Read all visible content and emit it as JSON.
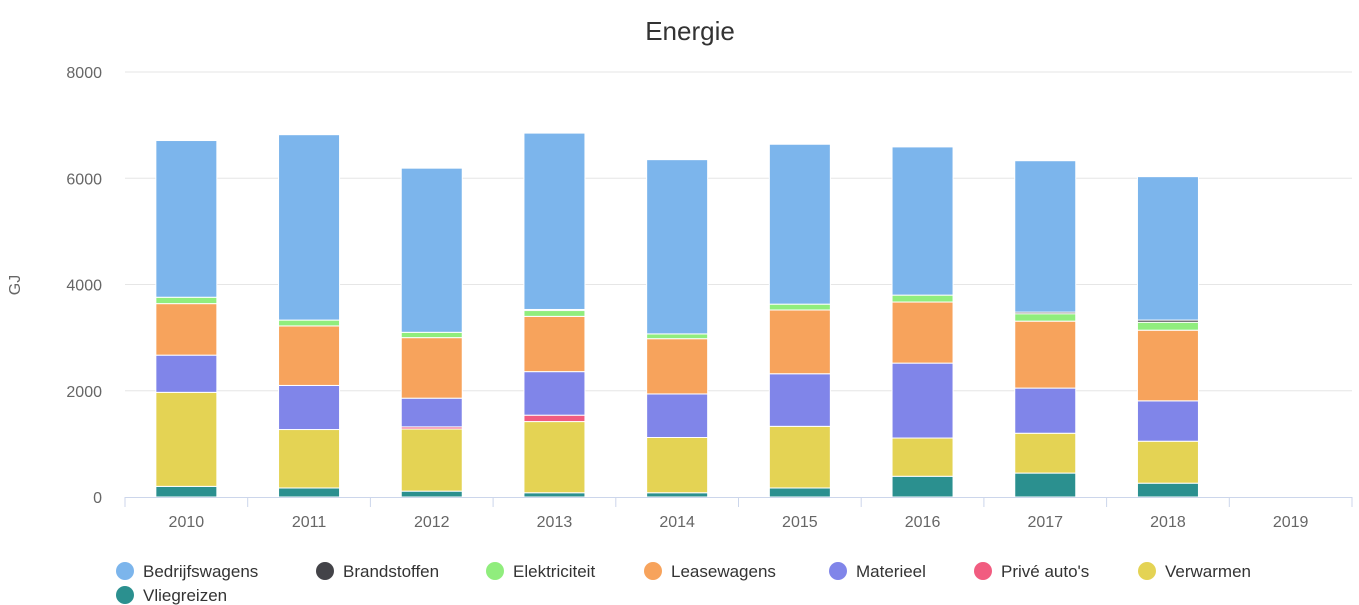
{
  "chart_data": {
    "type": "bar",
    "stacked": true,
    "title": "Energie",
    "xlabel": "",
    "ylabel": "GJ",
    "ylim": [
      0,
      8000
    ],
    "yticks": [
      "0",
      "2000",
      "4000",
      "6000",
      "8000"
    ],
    "grid": true,
    "legend": "bottom",
    "categories": [
      "2010",
      "2011",
      "2012",
      "2013",
      "2014",
      "2015",
      "2016",
      "2017",
      "2018",
      "2019"
    ],
    "series": [
      {
        "name": "Vliegreizen",
        "color": "#2b908f",
        "values": [
          200,
          170,
          110,
          80,
          80,
          170,
          390,
          450,
          260,
          0
        ]
      },
      {
        "name": "Verwarmen",
        "color": "#e4d354",
        "values": [
          1770,
          1100,
          1170,
          1340,
          1040,
          1160,
          720,
          750,
          790,
          0
        ]
      },
      {
        "name": "Privé auto's",
        "color": "#f15c80",
        "values": [
          0,
          0,
          40,
          120,
          0,
          0,
          0,
          0,
          0,
          0
        ]
      },
      {
        "name": "Materieel",
        "color": "#8085e9",
        "values": [
          700,
          830,
          540,
          820,
          820,
          990,
          1410,
          850,
          760,
          0
        ]
      },
      {
        "name": "Leasewagens",
        "color": "#f7a35c",
        "values": [
          970,
          1120,
          1140,
          1040,
          1040,
          1200,
          1150,
          1260,
          1330,
          0
        ]
      },
      {
        "name": "Elektriciteit",
        "color": "#90ed7d",
        "values": [
          120,
          110,
          100,
          110,
          90,
          110,
          130,
          140,
          150,
          0
        ]
      },
      {
        "name": "Brandstoffen",
        "color": "#434348",
        "values": [
          0,
          0,
          0,
          20,
          0,
          0,
          0,
          30,
          40,
          0
        ]
      },
      {
        "name": "Bedrijfswagens",
        "color": "#7cb5ec",
        "values": [
          2950,
          3490,
          3090,
          3320,
          3280,
          3010,
          2790,
          2850,
          2700,
          0
        ]
      }
    ],
    "legend_order": [
      "Bedrijfswagens",
      "Brandstoffen",
      "Elektriciteit",
      "Leasewagens",
      "Materieel",
      "Privé auto's",
      "Verwarmen",
      "Vliegreizen"
    ]
  }
}
